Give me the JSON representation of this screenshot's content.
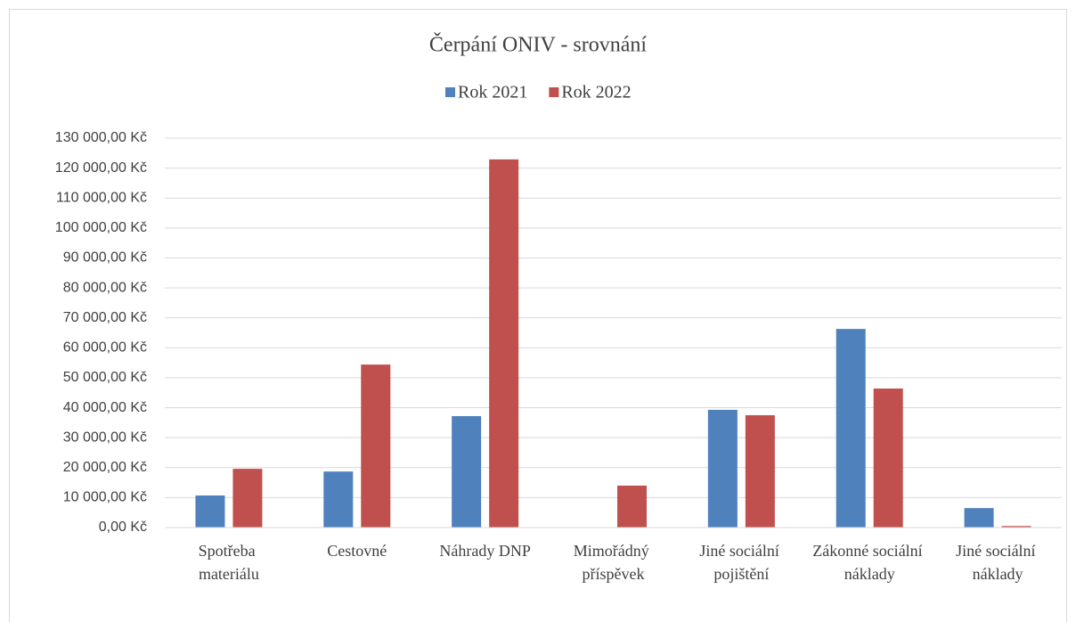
{
  "chart_data": {
    "type": "bar",
    "title": "Čerpání ONIV - srovnání",
    "categories": [
      "Spotřeba materiálu",
      "Cestovné",
      "Náhrady DNP",
      "Mimořádný příspěvek",
      "Jiné sociální pojištění",
      "Zákonné sociální náklady",
      "Jiné sociální náklady"
    ],
    "series": [
      {
        "name": "Rok 2021",
        "color": "#4f81bd",
        "values": [
          10700,
          18700,
          37200,
          0,
          39300,
          66300,
          6500
        ]
      },
      {
        "name": "Rok 2022",
        "color": "#c0504d",
        "values": [
          19600,
          54400,
          122900,
          14000,
          37500,
          46400,
          500
        ]
      }
    ],
    "ylim": [
      0,
      130000
    ],
    "yticks": [
      {
        "value": 0,
        "label": "0,00 Kč"
      },
      {
        "value": 10000,
        "label": "10 000,00 Kč"
      },
      {
        "value": 20000,
        "label": "20 000,00 Kč"
      },
      {
        "value": 30000,
        "label": "30 000,00 Kč"
      },
      {
        "value": 40000,
        "label": "40 000,00 Kč"
      },
      {
        "value": 50000,
        "label": "50 000,00 Kč"
      },
      {
        "value": 60000,
        "label": "60 000,00 Kč"
      },
      {
        "value": 70000,
        "label": "70 000,00 Kč"
      },
      {
        "value": 80000,
        "label": "80 000,00 Kč"
      },
      {
        "value": 90000,
        "label": "90 000,00 Kč"
      },
      {
        "value": 100000,
        "label": "100 000,00 Kč"
      },
      {
        "value": 110000,
        "label": "110 000,00 Kč"
      },
      {
        "value": 120000,
        "label": "120 000,00 Kč"
      },
      {
        "value": 130000,
        "label": "130 000,00 Kč"
      }
    ],
    "grid": true,
    "legend": "top"
  }
}
